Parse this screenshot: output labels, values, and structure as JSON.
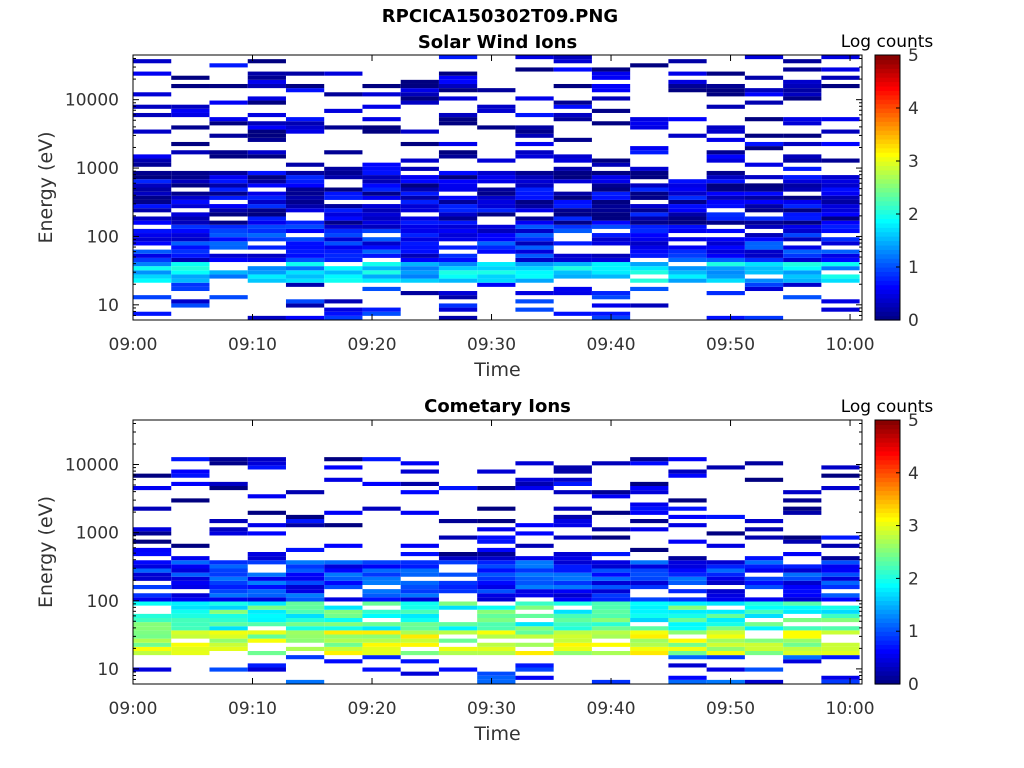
{
  "figure": {
    "title": "RPCICA150302T09.PNG"
  },
  "colorbar": {
    "label": "Log counts",
    "ticks": [
      "0",
      "1",
      "2",
      "3",
      "4",
      "5"
    ],
    "min": 0,
    "max": 5,
    "colormap": "jet"
  },
  "chart_data": [
    {
      "type": "heatmap",
      "title": "Solar Wind Ions",
      "xlabel": "Time",
      "ylabel": "Energy (eV)",
      "xticks": [
        "09:00",
        "09:10",
        "09:20",
        "09:30",
        "09:40",
        "09:50",
        "10:00"
      ],
      "yticks": [
        "10",
        "100",
        "1000",
        "10000"
      ],
      "yscale": "log",
      "ylim": [
        6,
        45000
      ],
      "xlim": [
        "09:00",
        "10:01"
      ],
      "columns": 19,
      "column_interval_min": 3.2,
      "energy_bands": [
        {
          "range_eV": [
            6,
            20
          ],
          "log_counts_typical": 0.6,
          "fill": "sparse"
        },
        {
          "range_eV": [
            20,
            40
          ],
          "log_counts_typical": 1.6,
          "fill": "dense"
        },
        {
          "range_eV": [
            40,
            150
          ],
          "log_counts_typical": 0.7,
          "fill": "dense"
        },
        {
          "range_eV": [
            150,
            900
          ],
          "log_counts_typical": 0.4,
          "fill": "dense"
        },
        {
          "range_eV": [
            900,
            45000
          ],
          "log_counts_typical": 0.3,
          "fill": "sparse"
        }
      ],
      "grid": false
    },
    {
      "type": "heatmap",
      "title": "Cometary Ions",
      "xlabel": "Time",
      "ylabel": "Energy (eV)",
      "xticks": [
        "09:00",
        "09:10",
        "09:20",
        "09:30",
        "09:40",
        "09:50",
        "10:00"
      ],
      "yticks": [
        "10",
        "100",
        "1000",
        "10000"
      ],
      "yscale": "log",
      "ylim": [
        6,
        45000
      ],
      "xlim": [
        "09:00",
        "10:01"
      ],
      "columns": 19,
      "column_interval_min": 3.2,
      "energy_bands": [
        {
          "range_eV": [
            6,
            17
          ],
          "log_counts_typical": 0.8,
          "fill": "sparse"
        },
        {
          "range_eV": [
            17,
            35
          ],
          "log_counts_typical": 2.8,
          "fill": "dense"
        },
        {
          "range_eV": [
            35,
            100
          ],
          "log_counts_typical": 2.1,
          "fill": "dense"
        },
        {
          "range_eV": [
            100,
            400
          ],
          "log_counts_typical": 0.8,
          "fill": "dense"
        },
        {
          "range_eV": [
            400,
            12000
          ],
          "log_counts_typical": 0.3,
          "fill": "sparse"
        }
      ],
      "grid": false
    }
  ]
}
